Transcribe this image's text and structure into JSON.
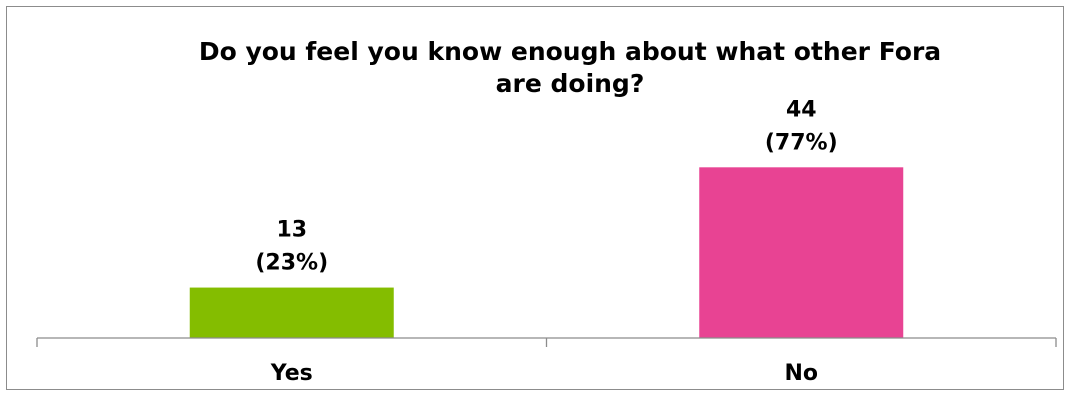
{
  "chart_data": {
    "type": "bar",
    "title": "Do you feel you know enough about what other Fora are doing?",
    "title_lines": [
      "Do you feel you know enough about what other Fora",
      "are doing?"
    ],
    "categories": [
      "Yes",
      "No"
    ],
    "values": [
      13,
      44
    ],
    "data_labels": [
      {
        "count": "13",
        "percent": "(23%)"
      },
      {
        "count": "44",
        "percent": "(77%)"
      }
    ],
    "colors": [
      "#84bd00",
      "#e84393"
    ],
    "ylim": [
      0,
      58
    ],
    "grid": false,
    "legend": "none",
    "xlabel": "",
    "ylabel": ""
  }
}
